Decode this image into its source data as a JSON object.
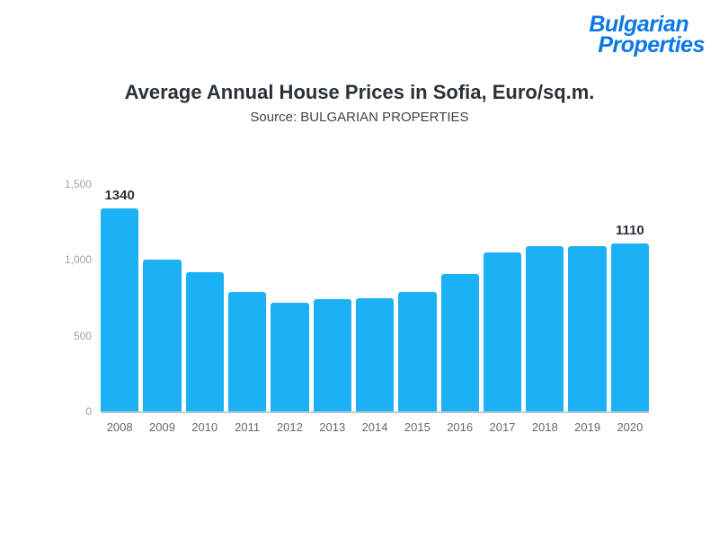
{
  "logo": {
    "line1": "Bulgarian",
    "line2": "Properties",
    "color": "#0a78e6"
  },
  "chart_data": {
    "type": "bar",
    "title": "Average Annual House Prices in Sofia, Euro/sq.m.",
    "subtitle": "Source: BULGARIAN PROPERTIES",
    "categories": [
      "2008",
      "2009",
      "2010",
      "2011",
      "2012",
      "2013",
      "2014",
      "2015",
      "2016",
      "2017",
      "2018",
      "2019",
      "2020"
    ],
    "values": [
      1340,
      1000,
      920,
      790,
      720,
      740,
      745,
      790,
      910,
      1050,
      1090,
      1090,
      1110
    ],
    "value_labels": [
      "1340",
      null,
      null,
      null,
      null,
      null,
      null,
      null,
      null,
      null,
      null,
      null,
      "1110"
    ],
    "xlabel": "",
    "ylabel": "",
    "ylim": [
      0,
      1500
    ],
    "yticks": [
      "0",
      "500",
      "1,000",
      "1,500"
    ],
    "ytick_values": [
      0,
      500,
      1000,
      1500
    ],
    "bar_color": "#1cb0f5",
    "grid": false,
    "legend": false
  }
}
